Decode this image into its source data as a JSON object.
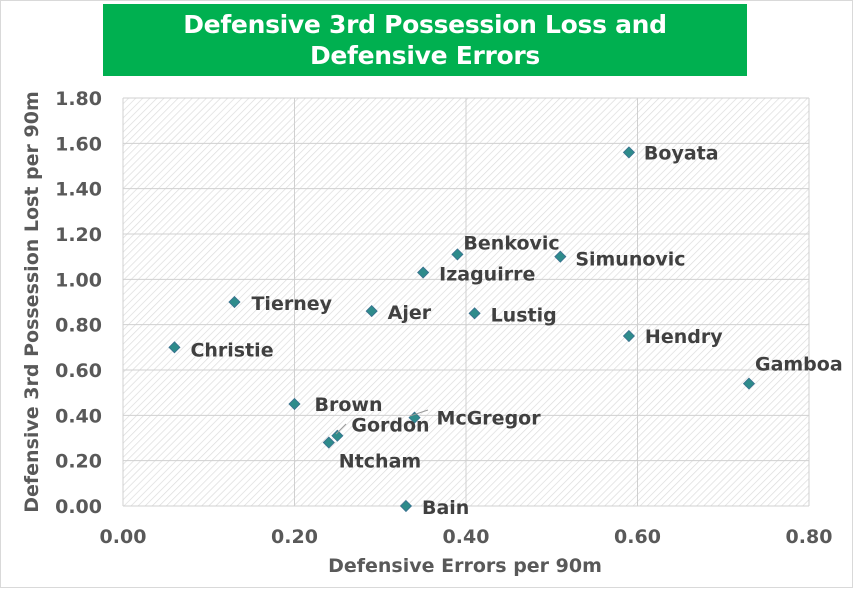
{
  "chart_data": {
    "type": "scatter",
    "title": "Defensive 3rd Possession Loss and Defensive Errors",
    "xlabel": "Defensive Errors per 90m",
    "ylabel": "Defensive 3rd Possession Lost per 90m",
    "xlim": [
      0,
      0.8
    ],
    "ylim": [
      0,
      1.8
    ],
    "x_ticks": [
      "0.00",
      "0.20",
      "0.40",
      "0.60",
      "0.80"
    ],
    "y_ticks": [
      "0.00",
      "0.20",
      "0.40",
      "0.60",
      "0.80",
      "1.00",
      "1.20",
      "1.40",
      "1.60",
      "1.80"
    ],
    "grid": true,
    "marker": "diamond",
    "marker_color": "#2e8b8b",
    "title_background": "#00b050",
    "points": [
      {
        "label": "Boyata",
        "x": 0.59,
        "y": 1.56
      },
      {
        "label": "Benkovic",
        "x": 0.39,
        "y": 1.11
      },
      {
        "label": "Simunovic",
        "x": 0.51,
        "y": 1.1
      },
      {
        "label": "Izaguirre",
        "x": 0.35,
        "y": 1.03
      },
      {
        "label": "Tierney",
        "x": 0.13,
        "y": 0.9
      },
      {
        "label": "Ajer",
        "x": 0.29,
        "y": 0.86
      },
      {
        "label": "Lustig",
        "x": 0.41,
        "y": 0.85
      },
      {
        "label": "Hendry",
        "x": 0.59,
        "y": 0.75
      },
      {
        "label": "Christie",
        "x": 0.06,
        "y": 0.7
      },
      {
        "label": "Gamboa",
        "x": 0.73,
        "y": 0.54
      },
      {
        "label": "Brown",
        "x": 0.2,
        "y": 0.45
      },
      {
        "label": "McGregor",
        "x": 0.34,
        "y": 0.39
      },
      {
        "label": "Gordon",
        "x": 0.25,
        "y": 0.31
      },
      {
        "label": "Ntcham",
        "x": 0.24,
        "y": 0.28
      },
      {
        "label": "Bain",
        "x": 0.33,
        "y": 0.0
      }
    ]
  }
}
